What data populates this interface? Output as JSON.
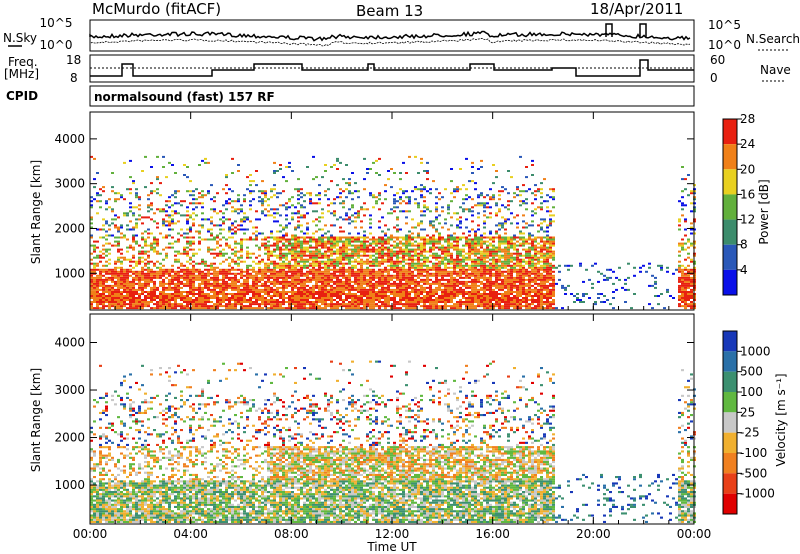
{
  "header": {
    "station": "McMurdo (fitACF)",
    "beam": "Beam 13",
    "date": "18/Apr/2011"
  },
  "strip": {
    "nsky_label": "N.Sky",
    "nsky_ticks": [
      "10^5",
      "10^0"
    ],
    "nsearch_label": "N.Search",
    "nsearch_ticks": [
      "10^5",
      "10^0"
    ],
    "freq_label_1": "Freq.",
    "freq_label_2": "[MHz]",
    "freq_ticks": [
      "18",
      "8"
    ],
    "nave_label": "Nave",
    "nave_ticks": [
      "60",
      "0"
    ],
    "cpid_label": "CPID",
    "cpid_value": "normalsound (fast) 157 RF"
  },
  "chart_data": [
    {
      "type": "heatmap",
      "panel": "power",
      "ylabel": "Slant Range [km]",
      "ylim": [
        180,
        4600
      ],
      "yticks": [
        "1000",
        "2000",
        "3000",
        "4000"
      ],
      "colorbar_label": "Power [dB]",
      "colorbar_ticks": [
        "4",
        "8",
        "12",
        "16",
        "20",
        "24",
        "28"
      ],
      "colors": [
        "#0a10e8",
        "#2a58b8",
        "#3c8c6c",
        "#62b03c",
        "#e8d020",
        "#f08018",
        "#e82010"
      ]
    },
    {
      "type": "heatmap",
      "panel": "velocity",
      "ylabel": "Slant Range [km]",
      "ylim": [
        180,
        4600
      ],
      "yticks": [
        "1000",
        "2000",
        "3000",
        "4000"
      ],
      "colorbar_label": "Velocity [m s⁻¹]",
      "colorbar_ticks": [
        "1000",
        "500",
        "100",
        "25",
        "-25",
        "-100",
        "-500",
        "-1000"
      ],
      "colors": [
        "#1838b8",
        "#2a70a8",
        "#3c9070",
        "#60b840",
        "#c8c8c8",
        "#f0b030",
        "#f08020",
        "#e84018",
        "#e00000"
      ]
    }
  ],
  "xaxis": {
    "label": "Time UT",
    "ticks": [
      "00:00",
      "04:00",
      "08:00",
      "12:00",
      "16:00",
      "20:00",
      "00:00"
    ],
    "tick_hours": [
      0,
      4,
      8,
      12,
      16,
      20,
      24
    ]
  }
}
